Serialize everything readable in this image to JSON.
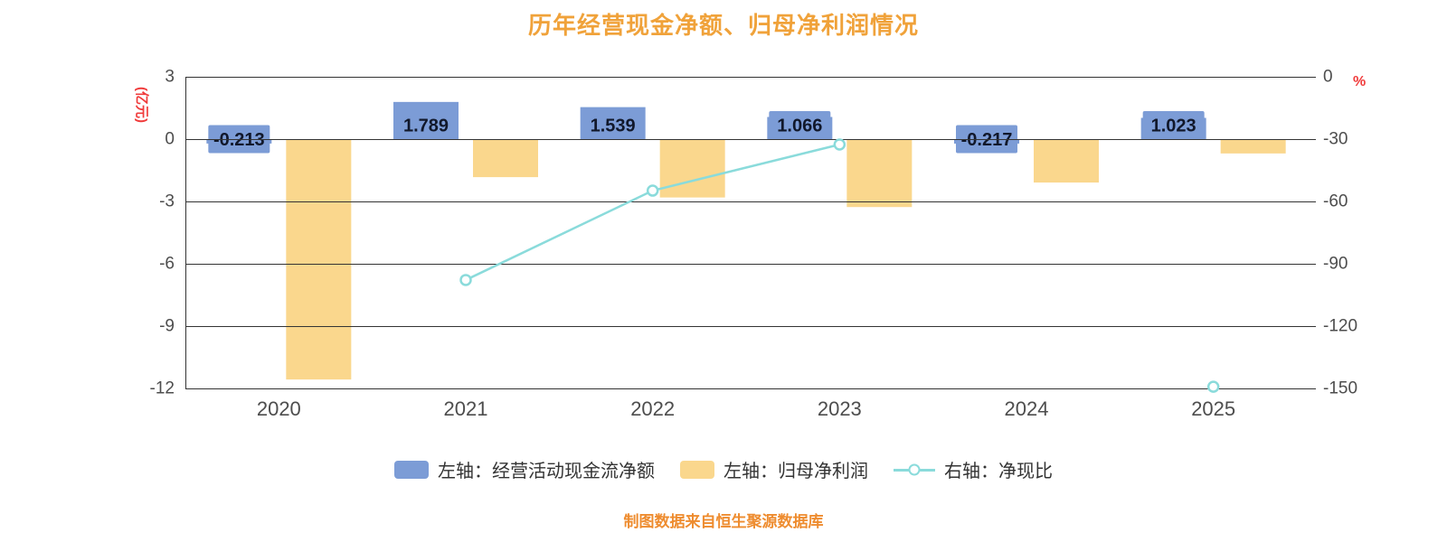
{
  "chart_data": {
    "type": "bar",
    "title": "历年经营现金净额、归母净利润情况",
    "caption": "制图数据来自恒生聚源数据库",
    "categories": [
      "2020",
      "2021",
      "2022",
      "2023",
      "2024",
      "2025"
    ],
    "series": [
      {
        "name": "左轴：经营活动现金流净额",
        "type": "bar",
        "axis": "left",
        "color": "#7C9CD6",
        "values": [
          -0.213,
          1.789,
          1.539,
          1.066,
          -0.217,
          1.023
        ],
        "labels": [
          "-0.213",
          "1.789",
          "1.539",
          "1.066",
          "-0.217",
          "1.023"
        ]
      },
      {
        "name": "左轴：归母净利润",
        "type": "bar",
        "axis": "left",
        "color": "#FAD78D",
        "values": [
          -11.57,
          -1.83,
          -2.81,
          -3.27,
          -2.09,
          -0.69
        ]
      },
      {
        "name": "右轴：净现比",
        "type": "line",
        "axis": "right",
        "color": "#8ADBDB",
        "values": [
          null,
          -97.8,
          -54.8,
          -32.6,
          null,
          -149.2
        ]
      }
    ],
    "left_axis": {
      "unit": "(亿元)",
      "min": -12,
      "max": 3,
      "ticks": [
        3,
        0,
        -3,
        -6,
        -9,
        -12
      ]
    },
    "right_axis": {
      "unit": "%",
      "min": -150,
      "max": 0,
      "ticks": [
        0,
        -30,
        -60,
        -90,
        -120,
        -150
      ]
    },
    "grid": true,
    "legend_position": "bottom",
    "colors": {
      "title": "#F0A23A",
      "caption": "#EE8C2F",
      "axis_unit": "#F03B3B",
      "tick_text": "#4D4D4D",
      "grid": "#333333",
      "bar_label_text": "#11182B"
    }
  },
  "legend": {
    "items": [
      {
        "label": "左轴：经营活动现金流净额",
        "swatch": "bar",
        "color": "#7C9CD6"
      },
      {
        "label": "左轴：归母净利润",
        "swatch": "bar",
        "color": "#FAD78D"
      },
      {
        "label": "右轴：净现比",
        "swatch": "line",
        "color": "#8ADBDB"
      }
    ]
  }
}
